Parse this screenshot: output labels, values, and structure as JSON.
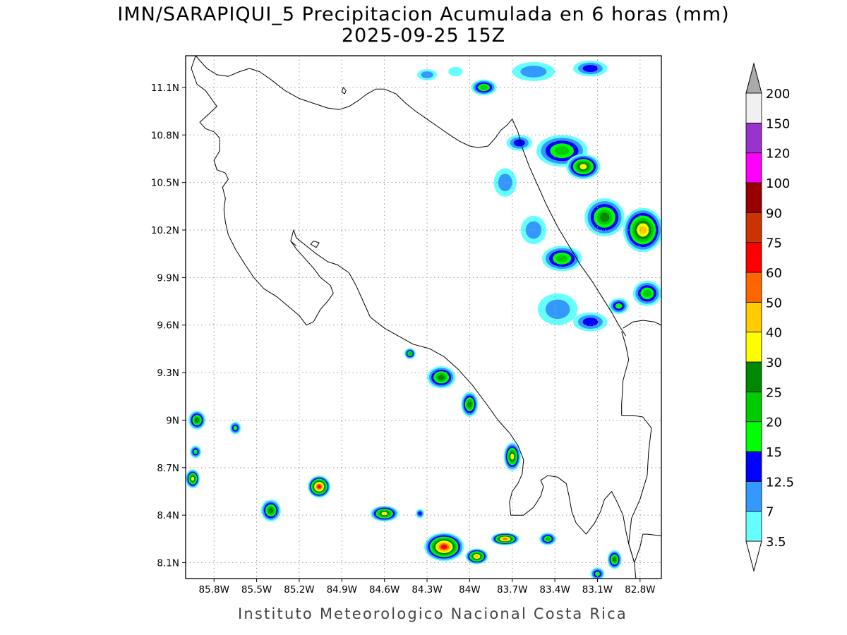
{
  "title": {
    "line1": "IMN/SARAPIQUI_5 Precipitacion Acumulada en 6 horas (mm)",
    "line2": "2025-09-25 15Z"
  },
  "credit": "Instituto Meteorologico Nacional Costa Rica",
  "map": {
    "lon_range": [
      -86.0,
      -82.65
    ],
    "lat_range": [
      8.0,
      11.3
    ],
    "lon_ticks": [
      {
        "value": -85.8,
        "label": "85.8W"
      },
      {
        "value": -85.5,
        "label": "85.5W"
      },
      {
        "value": -85.2,
        "label": "85.2W"
      },
      {
        "value": -84.9,
        "label": "84.9W"
      },
      {
        "value": -84.6,
        "label": "84.6W"
      },
      {
        "value": -84.3,
        "label": "84.3W"
      },
      {
        "value": -84.0,
        "label": "84W"
      },
      {
        "value": -83.7,
        "label": "83.7W"
      },
      {
        "value": -83.4,
        "label": "83.4W"
      },
      {
        "value": -83.1,
        "label": "83.1W"
      },
      {
        "value": -82.8,
        "label": "82.8W"
      }
    ],
    "lat_ticks": [
      {
        "value": 11.1,
        "label": "11.1N"
      },
      {
        "value": 10.8,
        "label": "10.8N"
      },
      {
        "value": 10.5,
        "label": "10.5N"
      },
      {
        "value": 10.2,
        "label": "10.2N"
      },
      {
        "value": 9.9,
        "label": "9.9N"
      },
      {
        "value": 9.6,
        "label": "9.6N"
      },
      {
        "value": 9.3,
        "label": "9.3N"
      },
      {
        "value": 9.0,
        "label": "9N"
      },
      {
        "value": 8.7,
        "label": "8.7N"
      },
      {
        "value": 8.4,
        "label": "8.4N"
      },
      {
        "value": 8.1,
        "label": "8.1N"
      }
    ],
    "grid": "dotted",
    "coast": [
      [
        -85.93,
        11.3
      ],
      [
        -85.85,
        11.22
      ],
      [
        -85.78,
        11.18
      ],
      [
        -85.7,
        11.17
      ],
      [
        -85.62,
        11.2
      ],
      [
        -85.55,
        11.22
      ],
      [
        -85.48,
        11.2
      ],
      [
        -85.4,
        11.15
      ],
      [
        -85.3,
        11.08
      ],
      [
        -85.2,
        11.03
      ],
      [
        -85.1,
        11.0
      ],
      [
        -85.0,
        10.97
      ],
      [
        -84.92,
        10.96
      ],
      [
        -84.85,
        10.98
      ],
      [
        -84.78,
        11.02
      ],
      [
        -84.72,
        11.06
      ],
      [
        -84.66,
        11.09
      ],
      [
        -84.6,
        11.09
      ],
      [
        -84.52,
        11.06
      ],
      [
        -84.45,
        11.0
      ],
      [
        -84.38,
        10.95
      ],
      [
        -84.3,
        10.9
      ],
      [
        -84.22,
        10.85
      ],
      [
        -84.14,
        10.8
      ],
      [
        -84.07,
        10.76
      ],
      [
        -84.0,
        10.73
      ],
      [
        -83.94,
        10.72
      ],
      [
        -83.87,
        10.73
      ],
      [
        -83.82,
        10.78
      ],
      [
        -83.78,
        10.83
      ],
      [
        -83.74,
        10.86
      ],
      [
        -83.7,
        10.9
      ]
    ],
    "border_north": [
      [
        -83.7,
        10.9
      ],
      [
        -83.66,
        10.82
      ],
      [
        -83.63,
        10.72
      ],
      [
        -83.58,
        10.6
      ],
      [
        -83.52,
        10.48
      ],
      [
        -83.46,
        10.36
      ],
      [
        -83.38,
        10.22
      ],
      [
        -83.3,
        10.1
      ],
      [
        -83.22,
        9.98
      ],
      [
        -83.14,
        9.88
      ],
      [
        -83.07,
        9.78
      ],
      [
        -83.0,
        9.68
      ],
      [
        -82.95,
        9.6
      ],
      [
        -82.9,
        9.53
      ]
    ],
    "caribbean_coast": [
      [
        -82.65,
        9.6
      ],
      [
        -82.7,
        9.62
      ],
      [
        -82.78,
        9.63
      ],
      [
        -82.85,
        9.62
      ],
      [
        -82.92,
        9.58
      ]
    ],
    "east_border": [
      [
        -82.93,
        9.56
      ],
      [
        -82.9,
        9.47
      ],
      [
        -82.88,
        9.38
      ],
      [
        -82.92,
        9.25
      ],
      [
        -82.93,
        9.1
      ],
      [
        -82.93,
        9.03
      ],
      [
        -82.85,
        9.03
      ],
      [
        -82.78,
        9.02
      ],
      [
        -82.72,
        8.95
      ],
      [
        -82.74,
        8.8
      ],
      [
        -82.75,
        8.65
      ],
      [
        -82.8,
        8.5
      ],
      [
        -82.86,
        8.38
      ],
      [
        -82.88,
        8.22
      ],
      [
        -82.84,
        8.1
      ],
      [
        -82.83,
        8.0
      ]
    ],
    "pacific_coast": [
      [
        -85.93,
        11.3
      ],
      [
        -85.96,
        11.22
      ],
      [
        -85.92,
        11.12
      ],
      [
        -85.86,
        11.08
      ],
      [
        -85.82,
        11.03
      ],
      [
        -85.78,
        10.98
      ],
      [
        -85.84,
        10.93
      ],
      [
        -85.9,
        10.88
      ],
      [
        -85.86,
        10.84
      ],
      [
        -85.8,
        10.82
      ],
      [
        -85.76,
        10.78
      ],
      [
        -85.76,
        10.7
      ],
      [
        -85.8,
        10.64
      ],
      [
        -85.78,
        10.58
      ],
      [
        -85.72,
        10.56
      ],
      [
        -85.7,
        10.52
      ],
      [
        -85.74,
        10.47
      ],
      [
        -85.72,
        10.4
      ],
      [
        -85.73,
        10.33
      ],
      [
        -85.72,
        10.25
      ],
      [
        -85.7,
        10.17
      ],
      [
        -85.65,
        10.08
      ],
      [
        -85.58,
        9.98
      ],
      [
        -85.52,
        9.9
      ],
      [
        -85.45,
        9.83
      ],
      [
        -85.36,
        9.78
      ],
      [
        -85.28,
        9.72
      ],
      [
        -85.2,
        9.66
      ],
      [
        -85.15,
        9.6
      ],
      [
        -85.1,
        9.62
      ],
      [
        -85.05,
        9.7
      ],
      [
        -85.0,
        9.75
      ],
      [
        -84.96,
        9.8
      ],
      [
        -84.98,
        9.85
      ],
      [
        -85.05,
        9.9
      ],
      [
        -85.1,
        9.96
      ],
      [
        -85.16,
        10.02
      ],
      [
        -85.22,
        10.08
      ],
      [
        -85.26,
        10.13
      ],
      [
        -85.24,
        10.2
      ],
      [
        -85.22,
        10.15
      ],
      [
        -85.15,
        10.1
      ],
      [
        -85.08,
        10.05
      ],
      [
        -85.0,
        10.0
      ],
      [
        -84.93,
        9.98
      ],
      [
        -84.85,
        9.93
      ],
      [
        -84.8,
        9.85
      ],
      [
        -84.75,
        9.75
      ],
      [
        -84.7,
        9.65
      ],
      [
        -84.6,
        9.58
      ],
      [
        -84.5,
        9.53
      ],
      [
        -84.4,
        9.48
      ],
      [
        -84.28,
        9.45
      ],
      [
        -84.18,
        9.4
      ],
      [
        -84.08,
        9.32
      ],
      [
        -83.98,
        9.22
      ],
      [
        -83.88,
        9.1
      ],
      [
        -83.8,
        9.0
      ],
      [
        -83.72,
        8.92
      ],
      [
        -83.66,
        8.84
      ],
      [
        -83.62,
        8.75
      ],
      [
        -83.63,
        8.66
      ],
      [
        -83.66,
        8.6
      ],
      [
        -83.7,
        8.55
      ],
      [
        -83.72,
        8.48
      ],
      [
        -83.71,
        8.4
      ],
      [
        -83.62,
        8.4
      ],
      [
        -83.55,
        8.45
      ],
      [
        -83.5,
        8.52
      ],
      [
        -83.48,
        8.58
      ],
      [
        -83.5,
        8.62
      ],
      [
        -83.45,
        8.65
      ],
      [
        -83.38,
        8.64
      ],
      [
        -83.32,
        8.6
      ],
      [
        -83.3,
        8.52
      ],
      [
        -83.28,
        8.42
      ],
      [
        -83.25,
        8.35
      ],
      [
        -83.2,
        8.3
      ],
      [
        -83.18,
        8.28
      ],
      [
        -83.12,
        8.35
      ],
      [
        -83.08,
        8.42
      ],
      [
        -83.05,
        8.5
      ],
      [
        -83.0,
        8.55
      ],
      [
        -82.96,
        8.48
      ],
      [
        -82.92,
        8.4
      ],
      [
        -82.9,
        8.3
      ],
      [
        -82.88,
        8.22
      ],
      [
        -82.84,
        8.1
      ],
      [
        -82.8,
        8.2
      ],
      [
        -82.78,
        8.28
      ],
      [
        -82.75,
        8.28
      ],
      [
        -82.65,
        8.27
      ]
    ],
    "nicoya_mainland": [
      [
        -85.26,
        10.13
      ],
      [
        -85.22,
        10.1
      ]
    ],
    "islands": [
      [
        [
          -84.9,
          11.07
        ],
        [
          -84.89,
          11.1
        ],
        [
          -84.87,
          11.08
        ],
        [
          -84.88,
          11.06
        ],
        [
          -84.9,
          11.07
        ]
      ],
      [
        [
          -85.12,
          10.11
        ],
        [
          -85.1,
          10.13
        ],
        [
          -85.06,
          10.12
        ],
        [
          -85.08,
          10.09
        ],
        [
          -85.12,
          10.11
        ]
      ]
    ]
  },
  "colorbar": {
    "levels": [
      {
        "label": "3.5",
        "color": "#66ffff"
      },
      {
        "label": "7",
        "color": "#3399ff"
      },
      {
        "label": "12.5",
        "color": "#0000ff"
      },
      {
        "label": "15",
        "color": "#00ff00"
      },
      {
        "label": "20",
        "color": "#00cc00"
      },
      {
        "label": "25",
        "color": "#008800"
      },
      {
        "label": "30",
        "color": "#ffff00"
      },
      {
        "label": "40",
        "color": "#ffcc00"
      },
      {
        "label": "50",
        "color": "#ff6600"
      },
      {
        "label": "60",
        "color": "#ff0000"
      },
      {
        "label": "75",
        "color": "#cc3300"
      },
      {
        "label": "90",
        "color": "#990000"
      },
      {
        "label": "100",
        "color": "#ff00ff"
      },
      {
        "label": "120",
        "color": "#9933cc"
      },
      {
        "label": "150",
        "color": "#f0f0f0"
      },
      {
        "label": "200",
        "color": "#aaaaaa"
      }
    ],
    "over_color": "#aaaaaa",
    "under_color": "#ffffff"
  },
  "precip_cells": [
    {
      "lon": -84.3,
      "lat": 11.18,
      "rx": 0.07,
      "ry": 0.035,
      "peak": 7
    },
    {
      "lon": -84.1,
      "lat": 11.2,
      "rx": 0.05,
      "ry": 0.03,
      "peak": 3.5
    },
    {
      "lon": -83.9,
      "lat": 11.1,
      "rx": 0.09,
      "ry": 0.05,
      "peak": 20
    },
    {
      "lon": -83.55,
      "lat": 11.2,
      "rx": 0.15,
      "ry": 0.06,
      "peak": 7
    },
    {
      "lon": -83.15,
      "lat": 11.22,
      "rx": 0.12,
      "ry": 0.05,
      "peak": 12.5
    },
    {
      "lon": -83.35,
      "lat": 10.7,
      "rx": 0.18,
      "ry": 0.1,
      "peak": 20
    },
    {
      "lon": -83.2,
      "lat": 10.6,
      "rx": 0.12,
      "ry": 0.08,
      "peak": 30
    },
    {
      "lon": -83.05,
      "lat": 10.28,
      "rx": 0.14,
      "ry": 0.12,
      "peak": 25
    },
    {
      "lon": -82.78,
      "lat": 10.2,
      "rx": 0.14,
      "ry": 0.14,
      "peak": 40
    },
    {
      "lon": -83.35,
      "lat": 10.02,
      "rx": 0.14,
      "ry": 0.08,
      "peak": 20
    },
    {
      "lon": -83.55,
      "lat": 10.2,
      "rx": 0.09,
      "ry": 0.09,
      "peak": 7
    },
    {
      "lon": -82.75,
      "lat": 9.8,
      "rx": 0.1,
      "ry": 0.08,
      "peak": 20
    },
    {
      "lon": -82.95,
      "lat": 9.72,
      "rx": 0.07,
      "ry": 0.05,
      "peak": 15
    },
    {
      "lon": -83.15,
      "lat": 9.62,
      "rx": 0.12,
      "ry": 0.06,
      "peak": 12.5
    },
    {
      "lon": -83.38,
      "lat": 9.7,
      "rx": 0.14,
      "ry": 0.1,
      "peak": 7
    },
    {
      "lon": -84.42,
      "lat": 9.42,
      "rx": 0.04,
      "ry": 0.035,
      "peak": 20
    },
    {
      "lon": -84.2,
      "lat": 9.27,
      "rx": 0.1,
      "ry": 0.07,
      "peak": 25
    },
    {
      "lon": -84.0,
      "lat": 9.1,
      "rx": 0.06,
      "ry": 0.08,
      "peak": 25
    },
    {
      "lon": -83.7,
      "lat": 8.77,
      "rx": 0.06,
      "ry": 0.09,
      "peak": 30
    },
    {
      "lon": -85.92,
      "lat": 9.0,
      "rx": 0.06,
      "ry": 0.06,
      "peak": 25
    },
    {
      "lon": -85.65,
      "lat": 8.95,
      "rx": 0.04,
      "ry": 0.04,
      "peak": 15
    },
    {
      "lon": -85.93,
      "lat": 8.8,
      "rx": 0.04,
      "ry": 0.04,
      "peak": 15
    },
    {
      "lon": -85.95,
      "lat": 8.63,
      "rx": 0.05,
      "ry": 0.06,
      "peak": 30
    },
    {
      "lon": -85.06,
      "lat": 8.58,
      "rx": 0.08,
      "ry": 0.07,
      "peak": 60
    },
    {
      "lon": -85.4,
      "lat": 8.43,
      "rx": 0.07,
      "ry": 0.07,
      "peak": 25
    },
    {
      "lon": -84.6,
      "lat": 8.41,
      "rx": 0.1,
      "ry": 0.05,
      "peak": 30
    },
    {
      "lon": -84.35,
      "lat": 8.41,
      "rx": 0.03,
      "ry": 0.03,
      "peak": 12.5
    },
    {
      "lon": -84.18,
      "lat": 8.2,
      "rx": 0.14,
      "ry": 0.09,
      "peak": 60
    },
    {
      "lon": -83.95,
      "lat": 8.14,
      "rx": 0.08,
      "ry": 0.05,
      "peak": 40
    },
    {
      "lon": -83.75,
      "lat": 8.25,
      "rx": 0.1,
      "ry": 0.04,
      "peak": 50
    },
    {
      "lon": -83.45,
      "lat": 8.25,
      "rx": 0.06,
      "ry": 0.04,
      "peak": 20
    },
    {
      "lon": -82.98,
      "lat": 8.12,
      "rx": 0.05,
      "ry": 0.06,
      "peak": 25
    },
    {
      "lon": -83.1,
      "lat": 8.03,
      "rx": 0.05,
      "ry": 0.04,
      "peak": 15
    },
    {
      "lon": -83.75,
      "lat": 10.5,
      "rx": 0.08,
      "ry": 0.09,
      "peak": 7
    },
    {
      "lon": -83.65,
      "lat": 10.75,
      "rx": 0.09,
      "ry": 0.05,
      "peak": 12.5
    }
  ]
}
